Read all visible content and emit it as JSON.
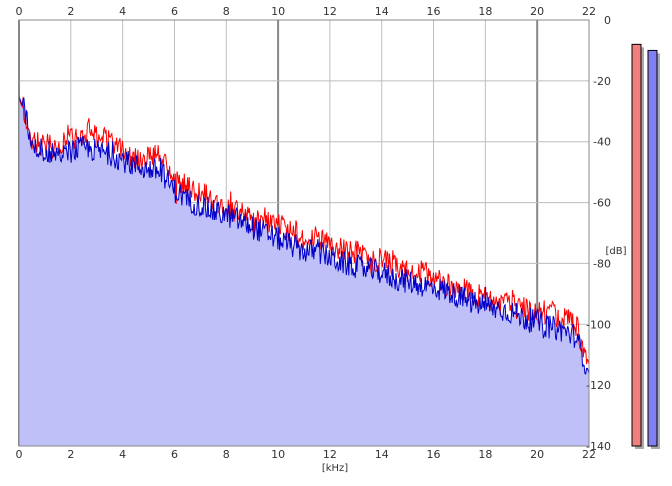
{
  "chart_data": {
    "type": "area",
    "xlabel": "[kHz]",
    "ylabel": "[dB]",
    "xlim": [
      0,
      22
    ],
    "ylim": [
      -140,
      0
    ],
    "x_ticks": [
      0,
      2,
      4,
      6,
      8,
      10,
      12,
      14,
      16,
      18,
      20,
      22
    ],
    "y_ticks": [
      0,
      -20,
      -40,
      -60,
      -80,
      -100,
      -120,
      -140
    ],
    "grid": true,
    "series": [
      {
        "color": "#ff0000",
        "x": [
          0,
          0.2,
          0.5,
          1,
          1.5,
          2,
          2.5,
          2.8,
          3,
          3.5,
          4,
          4.5,
          5,
          5.3,
          5.5,
          6,
          6.5,
          7,
          7.5,
          8,
          8.5,
          9,
          9.5,
          10,
          10.5,
          11,
          11.5,
          12,
          12.5,
          13,
          13.5,
          14,
          14.5,
          15,
          15.5,
          16,
          16.5,
          17,
          17.5,
          18,
          18.5,
          19,
          19.5,
          20,
          20.5,
          21,
          21.5,
          22
        ],
        "values": [
          -26,
          -30,
          -40,
          -41,
          -42,
          -39,
          -37,
          -35,
          -38,
          -40,
          -43,
          -45,
          -45,
          -44,
          -46,
          -53,
          -55,
          -57,
          -59,
          -62,
          -63,
          -66,
          -67,
          -67,
          -70,
          -72,
          -71,
          -73,
          -76,
          -76,
          -79,
          -79,
          -81,
          -83,
          -83,
          -84,
          -87,
          -88,
          -90,
          -91,
          -93,
          -94,
          -95,
          -96,
          -96,
          -98,
          -100,
          -113
        ]
      },
      {
        "color": "#0000c8",
        "fill": "#c0c0f8",
        "x": [
          0,
          0.2,
          0.5,
          1,
          1.5,
          2,
          2.5,
          3,
          3.5,
          4,
          4.5,
          5,
          5.5,
          6,
          6.5,
          7,
          7.5,
          8,
          8.5,
          9,
          9.5,
          10,
          10.5,
          11,
          11.5,
          12,
          12.5,
          13,
          13.5,
          14,
          14.5,
          15,
          15.5,
          16,
          16.5,
          17,
          17.5,
          18,
          18.5,
          19,
          19.5,
          20,
          20.5,
          21,
          21.5,
          22
        ],
        "values": [
          -25,
          -30,
          -41,
          -43,
          -45,
          -43,
          -42,
          -43,
          -44,
          -46,
          -48,
          -49,
          -50,
          -56,
          -59,
          -61,
          -63,
          -64,
          -66,
          -68,
          -70,
          -72,
          -74,
          -76,
          -76,
          -78,
          -80,
          -81,
          -82,
          -83,
          -85,
          -86,
          -87,
          -88,
          -89,
          -91,
          -93,
          -94,
          -95,
          -96,
          -98,
          -99,
          -101,
          -102,
          -104,
          -116
        ]
      }
    ],
    "level_meters": [
      {
        "color": "#f08080",
        "value_db": -8
      },
      {
        "color": "#8080f0",
        "value_db": -10
      }
    ]
  }
}
